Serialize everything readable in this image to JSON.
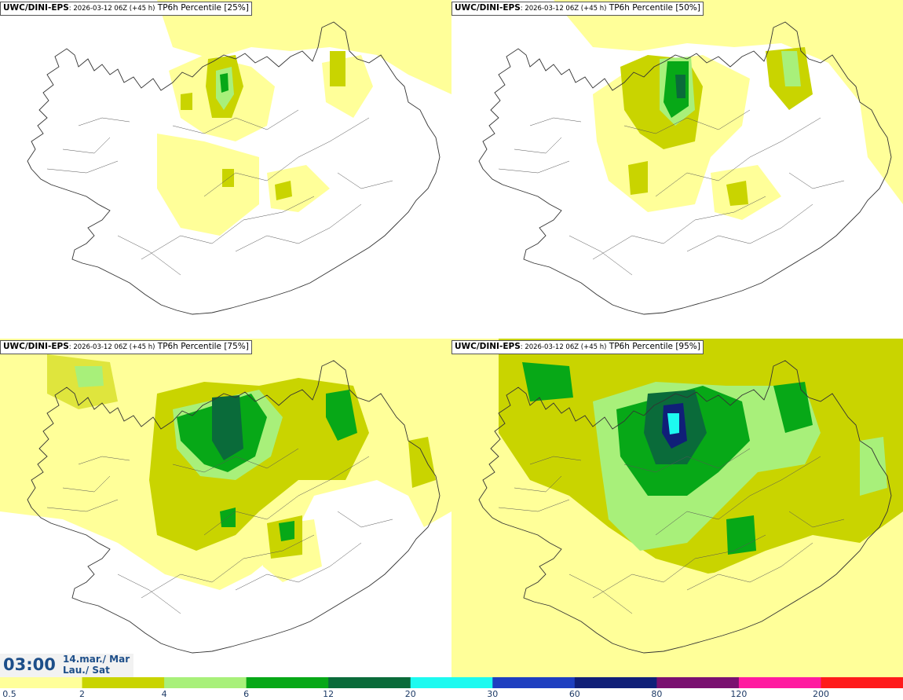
{
  "model": "UWC/DINI-EPS",
  "run_info": ": 2026-03-12 06Z (+45 h)",
  "panels": [
    {
      "variable": " TP6h Percentile [25%]"
    },
    {
      "variable": " TP6h Percentile [50%]"
    },
    {
      "variable": " TP6h Percentile [75%]"
    },
    {
      "variable": " TP6h Percentile [95%]"
    }
  ],
  "valid_time": {
    "time": "03:00",
    "date": "14.mar./ Mar",
    "weekday": "Lau./ Sat"
  },
  "colorbar": {
    "levels": [
      "0.5",
      "2",
      "4",
      "6",
      "12",
      "20",
      "30",
      "60",
      "80",
      "120",
      "200"
    ],
    "colors": [
      "#ffff99",
      "#c9d400",
      "#a8f07a",
      "#07a817",
      "#0a6b3a",
      "#1dfaf0",
      "#1e3fc0",
      "#101f78",
      "#7a1070",
      "#ff1aa0",
      "#ff1a1a"
    ]
  }
}
